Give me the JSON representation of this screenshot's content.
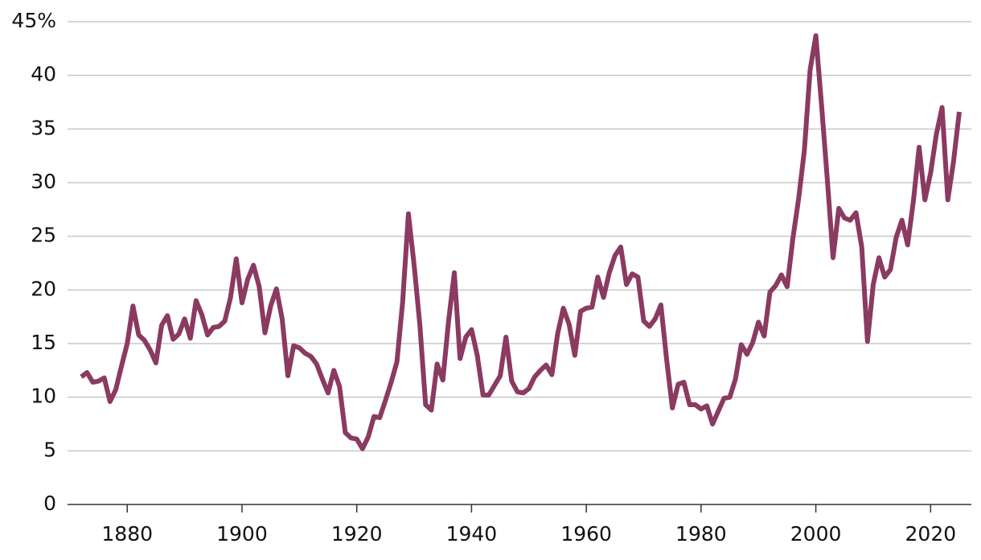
{
  "chart_data": {
    "type": "line",
    "x": [
      1872,
      1873,
      1874,
      1875,
      1876,
      1877,
      1878,
      1879,
      1880,
      1881,
      1882,
      1883,
      1884,
      1885,
      1886,
      1887,
      1888,
      1889,
      1890,
      1891,
      1892,
      1893,
      1894,
      1895,
      1896,
      1897,
      1898,
      1899,
      1900,
      1901,
      1902,
      1903,
      1904,
      1905,
      1906,
      1907,
      1908,
      1909,
      1910,
      1911,
      1912,
      1913,
      1914,
      1915,
      1916,
      1917,
      1918,
      1919,
      1920,
      1921,
      1922,
      1923,
      1924,
      1925,
      1926,
      1927,
      1928,
      1929,
      1930,
      1931,
      1932,
      1933,
      1934,
      1935,
      1936,
      1937,
      1938,
      1939,
      1940,
      1941,
      1942,
      1943,
      1944,
      1945,
      1946,
      1947,
      1948,
      1949,
      1950,
      1951,
      1952,
      1953,
      1954,
      1955,
      1956,
      1957,
      1958,
      1959,
      1960,
      1961,
      1962,
      1963,
      1964,
      1965,
      1966,
      1967,
      1968,
      1969,
      1970,
      1971,
      1972,
      1973,
      1974,
      1975,
      1976,
      1977,
      1978,
      1979,
      1980,
      1981,
      1982,
      1983,
      1984,
      1985,
      1986,
      1987,
      1988,
      1989,
      1990,
      1991,
      1992,
      1993,
      1994,
      1995,
      1996,
      1997,
      1998,
      1999,
      2000,
      2001,
      2002,
      2003,
      2004,
      2005,
      2006,
      2007,
      2008,
      2009,
      2010,
      2011,
      2012,
      2013,
      2014,
      2015,
      2016,
      2017,
      2018,
      2019,
      2020,
      2021,
      2022,
      2023,
      2024,
      2025
    ],
    "series": [
      {
        "color": "#8b3a62",
        "values": [
          11.9,
          12.3,
          11.4,
          11.5,
          11.8,
          9.6,
          10.7,
          12.9,
          15.0,
          18.5,
          15.8,
          15.3,
          14.4,
          13.2,
          16.7,
          17.6,
          15.4,
          15.9,
          17.3,
          15.5,
          19.0,
          17.7,
          15.8,
          16.5,
          16.6,
          17.1,
          19.3,
          22.9,
          18.8,
          21.0,
          22.3,
          20.3,
          16.0,
          18.5,
          20.1,
          17.3,
          12.0,
          14.8,
          14.6,
          14.1,
          13.8,
          13.1,
          11.7,
          10.4,
          12.5,
          11.0,
          6.7,
          6.2,
          6.1,
          5.2,
          6.3,
          8.2,
          8.1,
          9.7,
          11.4,
          13.3,
          18.9,
          27.1,
          22.3,
          16.7,
          9.3,
          8.8,
          13.1,
          11.6,
          17.1,
          21.6,
          13.6,
          15.6,
          16.3,
          13.9,
          10.2,
          10.2,
          11.1,
          12.0,
          15.6,
          11.5,
          10.5,
          10.4,
          10.8,
          11.9,
          12.5,
          13.0,
          12.1,
          15.9,
          18.3,
          16.8,
          13.9,
          18.0,
          18.3,
          18.4,
          21.2,
          19.3,
          21.6,
          23.2,
          24.0,
          20.5,
          21.5,
          21.2,
          17.1,
          16.6,
          17.3,
          18.6,
          13.5,
          9.0,
          11.2,
          11.4,
          9.3,
          9.3,
          8.9,
          9.2,
          7.5,
          8.7,
          9.9,
          10.0,
          11.7,
          14.9,
          14.0,
          15.1,
          17.0,
          15.7,
          19.8,
          20.4,
          21.4,
          20.3,
          24.8,
          28.5,
          33.0,
          40.5,
          43.7,
          37.2,
          30.3,
          23.0,
          27.6,
          26.7,
          26.5,
          27.2,
          24.0,
          15.2,
          20.5,
          23.0,
          21.2,
          21.9,
          24.9,
          26.5,
          24.2,
          28.3,
          33.3,
          28.4,
          30.9,
          34.5,
          37.0,
          28.4,
          32.0,
          36.6
        ]
      }
    ],
    "xlim": [
      1869.6,
      2027.1
    ],
    "xticks": [
      1880,
      1900,
      1920,
      1940,
      1960,
      1980,
      2000,
      2020
    ],
    "ylim": [
      0,
      45
    ],
    "yticks": [
      0,
      5,
      10,
      15,
      20,
      25,
      30,
      35,
      40,
      {
        "value": 45,
        "label": "45%"
      }
    ],
    "grid": true
  }
}
